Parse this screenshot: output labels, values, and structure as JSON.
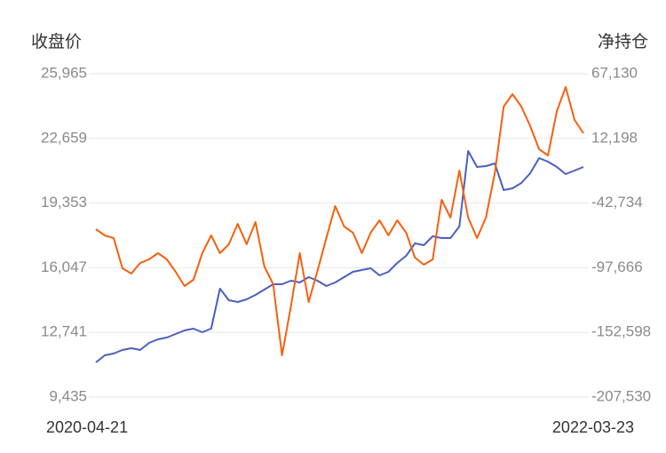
{
  "chart_data": {
    "type": "line",
    "y_label": "收盘价",
    "y2_label": "净持仓",
    "categories": [
      "2020-04-21",
      null,
      null,
      null,
      null,
      null,
      null,
      null,
      null,
      null,
      null,
      null,
      null,
      null,
      null,
      null,
      null,
      null,
      null,
      null,
      null,
      null,
      null,
      null,
      null,
      null,
      null,
      null,
      null,
      null,
      null,
      null,
      null,
      null,
      null,
      null,
      null,
      null,
      null,
      null,
      null,
      null,
      null,
      null,
      null,
      null,
      null,
      null,
      null,
      null,
      null,
      null,
      null,
      null,
      null,
      "2022-03-23"
    ],
    "series": [
      {
        "name": "收盘价",
        "color": "#4a5fc1",
        "axis": "y",
        "values": [
          11207,
          11570,
          11661,
          11842,
          11933,
          11842,
          12206,
          12387,
          12478,
          12660,
          12842,
          12932,
          12751,
          12932,
          14976,
          14385,
          14295,
          14431,
          14658,
          14930,
          15203,
          15203,
          15384,
          15294,
          15566,
          15384,
          15112,
          15294,
          15566,
          15839,
          15929,
          16020,
          15657,
          15839,
          16293,
          16656,
          17292,
          17201,
          17655,
          17564,
          17564,
          18154,
          22014,
          21197,
          21242,
          21379,
          20016,
          20107,
          20380,
          20879,
          21651,
          21469,
          21197,
          20834,
          21015,
          21197
        ]
      },
      {
        "name": "净持仓",
        "color": "#f5600f",
        "axis": "y2",
        "values": [
          -64925,
          -70207,
          -72471,
          -98127,
          -102655,
          -93600,
          -90581,
          -85299,
          -90581,
          -101146,
          -113219,
          -107937,
          -85299,
          -70207,
          -85299,
          -77753,
          -60397,
          -77753,
          -58888,
          -96618,
          -111710,
          -172078,
          -130575,
          -85299,
          -126802,
          -100391,
          -72471,
          -45305,
          -62661,
          -67943,
          -85299,
          -67943,
          -57379,
          -70207,
          -57379,
          -67943,
          -89072,
          -95109,
          -90581,
          -40023,
          -55115,
          -15121,
          -55115,
          -72471,
          -55115,
          -17385,
          39210,
          49774,
          39210,
          22609,
          2989,
          -2293,
          35437,
          55811,
          27891,
          16572
        ]
      }
    ],
    "ylim": [
      9435,
      25965
    ],
    "yticks": [
      {
        "value": 9435,
        "label": "9,435"
      },
      {
        "value": 12741,
        "label": "12,741"
      },
      {
        "value": 16047,
        "label": "16,047"
      },
      {
        "value": 19353,
        "label": "19,353"
      },
      {
        "value": 22659,
        "label": "22,659"
      },
      {
        "value": 25965,
        "label": "25,965"
      }
    ],
    "y2lim": [
      -207530,
      67130
    ],
    "y2ticks": [
      {
        "value": -207530,
        "label": "-207,530"
      },
      {
        "value": -152598,
        "label": "-152,598"
      },
      {
        "value": -97666,
        "label": "-97,666"
      },
      {
        "value": -42734,
        "label": "-42,734"
      },
      {
        "value": 12198,
        "label": "12,198"
      },
      {
        "value": 67130,
        "label": "67,130"
      }
    ],
    "grid": true
  }
}
